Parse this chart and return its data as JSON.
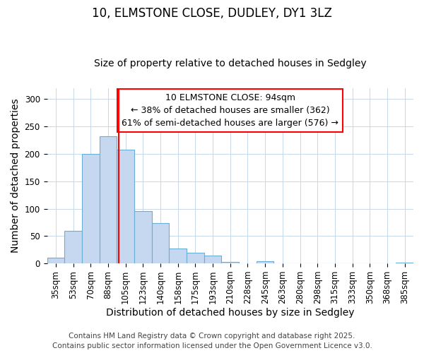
{
  "title1": "10, ELMSTONE CLOSE, DUDLEY, DY1 3LZ",
  "title2": "Size of property relative to detached houses in Sedgley",
  "xlabel": "Distribution of detached houses by size in Sedgley",
  "ylabel": "Number of detached properties",
  "categories": [
    "35sqm",
    "53sqm",
    "70sqm",
    "88sqm",
    "105sqm",
    "123sqm",
    "140sqm",
    "158sqm",
    "175sqm",
    "193sqm",
    "210sqm",
    "228sqm",
    "245sqm",
    "263sqm",
    "280sqm",
    "298sqm",
    "315sqm",
    "333sqm",
    "350sqm",
    "368sqm",
    "385sqm"
  ],
  "values": [
    10,
    60,
    200,
    232,
    208,
    96,
    74,
    27,
    20,
    14,
    3,
    0,
    4,
    0,
    0,
    0,
    0,
    0,
    0,
    0,
    2
  ],
  "bar_color": "#c5d8f0",
  "bar_edge_color": "#6aaed6",
  "bar_width": 1.0,
  "red_line_x": 3.62,
  "annotation_text": "10 ELMSTONE CLOSE: 94sqm\n← 38% of detached houses are smaller (362)\n61% of semi-detached houses are larger (576) →",
  "annotation_box_color": "white",
  "annotation_box_edge_color": "red",
  "ylim": [
    0,
    320
  ],
  "yticks": [
    0,
    50,
    100,
    150,
    200,
    250,
    300
  ],
  "footer1": "Contains HM Land Registry data © Crown copyright and database right 2025.",
  "footer2": "Contains public sector information licensed under the Open Government Licence v3.0.",
  "bg_color": "white",
  "plot_bg_color": "white",
  "grid_color": "#c8d8ec",
  "title_fontsize": 12,
  "subtitle_fontsize": 10,
  "axis_label_fontsize": 10,
  "tick_fontsize": 8.5,
  "footer_fontsize": 7.5,
  "annot_fontsize": 9
}
